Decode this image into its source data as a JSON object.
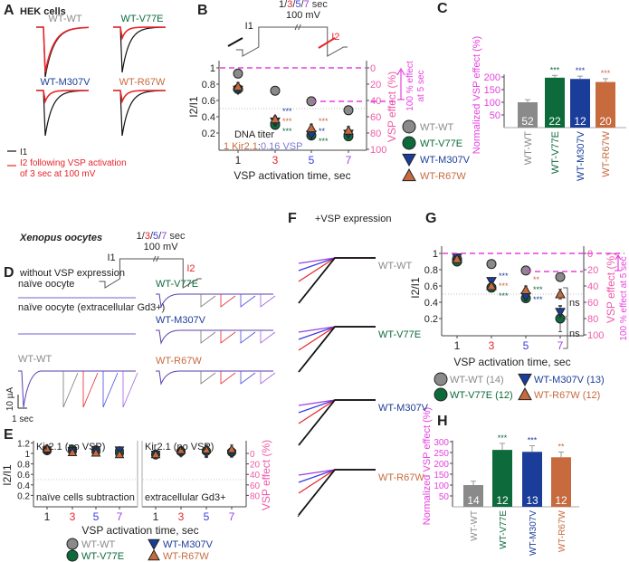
{
  "colors": {
    "WT-WT": "#8a8a8a",
    "WT-V77E": "#0d6b3b",
    "WT-M307V": "#1b3d9a",
    "WT-R67W": "#c76a3e",
    "vsp_axis": "#e83fe0",
    "vsp_ticks": "#ef5aa8",
    "t1": "#222222",
    "t3": "#e8242a",
    "t5": "#3a3ae0",
    "t7": "#9b3fe0"
  },
  "markers": {
    "WT-WT": "circle",
    "WT-V77E": "circle",
    "WT-M307V": "triangle-down",
    "WT-R67W": "triangle-up"
  },
  "panelA": {
    "label": "A",
    "title": "HEK cells",
    "traces": [
      "WT-WT",
      "WT-V77E",
      "WT-M307V",
      "WT-R67W"
    ],
    "legend_i1": "I1",
    "legend_i2_line1": "I2 following VSP activation",
    "legend_i2_line2": "of 3 sec at 100 mV"
  },
  "panelB": {
    "label": "B",
    "protocol_times": [
      "1",
      "/",
      "3",
      "/",
      "5",
      "/",
      "7",
      " sec"
    ],
    "protocol_voltage": "100 mV",
    "i1": "I1",
    "i2": "I2",
    "dna_titer": "DNA titer",
    "ratio_kir": "1 Kir2.1",
    "ratio_sep": ":",
    "ratio_vsp": "0.16 VSP",
    "arrow_note_line1": "100 % effect",
    "arrow_note_line2": "at 5 sec"
  },
  "panelD": {
    "section_title": "Xenopus oocytes",
    "label": "D",
    "subtitle": "without VSP expression",
    "protocol_times": [
      "1",
      "/",
      "3",
      "/",
      "5",
      "/",
      "7",
      " sec"
    ],
    "protocol_voltage": "100 mV",
    "i1": "I1",
    "i2": "I2",
    "rows": [
      "naïve oocyte",
      "naïve oocyte (extracellular Gd3+)",
      "WT-WT",
      "WT-V77E",
      "WT-M307V",
      "WT-R67W"
    ],
    "scale_y": "10 µA",
    "scale_x": "1 sec"
  },
  "panelF": {
    "label": "F",
    "subtitle": "+VSP expression",
    "traces": [
      "WT-WT",
      "WT-V77E",
      "WT-M307V",
      "WT-R67W"
    ]
  },
  "panelG": {
    "arrow_note": "100 % effect at 5 sec",
    "ns": "ns"
  },
  "chart_data": [
    {
      "id": "B",
      "type": "scatter",
      "xlabel": "VSP activation time, sec",
      "ylabel": "I2/I1",
      "y2label": "VSP effect (%)",
      "x": [
        1,
        3,
        5,
        7
      ],
      "xticks": [
        "1",
        "3",
        "5",
        "7"
      ],
      "yticks": [
        "0.2",
        "0.4",
        "0.6",
        "0.8",
        "1"
      ],
      "y2ticks": [
        "0",
        "20",
        "40",
        "60",
        "80",
        "100"
      ],
      "reference_line": 0.5,
      "grid": false,
      "series": [
        {
          "name": "WT-WT",
          "values": [
            0.93,
            0.72,
            0.59,
            0.48
          ],
          "errors": [
            0.02,
            0.02,
            0.03,
            0.03
          ],
          "stars": [
            "",
            "",
            "",
            ""
          ]
        },
        {
          "name": "WT-V77E",
          "values": [
            0.74,
            0.3,
            0.17,
            0.16
          ],
          "errors": [
            0.04,
            0.03,
            0.02,
            0.03
          ],
          "stars": [
            "",
            "***",
            "***",
            ""
          ]
        },
        {
          "name": "WT-M307V",
          "values": [
            0.73,
            0.34,
            0.18,
            0.19
          ],
          "errors": [
            0.04,
            0.04,
            0.02,
            0.03
          ],
          "stars": [
            "",
            "***",
            "**",
            ""
          ]
        },
        {
          "name": "WT-R67W",
          "values": [
            0.77,
            0.37,
            0.26,
            0.23
          ],
          "errors": [
            0.05,
            0.04,
            0.05,
            0.05
          ],
          "stars": [
            "",
            "***",
            "***",
            ""
          ]
        }
      ],
      "legend": [
        "WT-WT",
        "WT-V77E",
        "WT-M307V",
        "WT-R67W"
      ],
      "legend_placement": "right"
    },
    {
      "id": "C",
      "label": "C",
      "type": "bar",
      "ylabel": "Normalized VSP effect (%)",
      "categories": [
        "WT-WT",
        "WT-V77E",
        "WT-M307V",
        "WT-R67W"
      ],
      "values": [
        100,
        197,
        192,
        180
      ],
      "errors": [
        10,
        9,
        11,
        13
      ],
      "n": [
        "52",
        "22",
        "12",
        "20"
      ],
      "stars": [
        "",
        "***",
        "***",
        "***"
      ],
      "yticks": [
        "50",
        "100",
        "150",
        "200"
      ]
    },
    {
      "id": "E-left",
      "label": "E",
      "type": "scatter",
      "title": "Kir2.1 (no VSP)",
      "annotation": "naïve cells subtraction",
      "ylabel": "I2/I1",
      "xlabel": "VSP activation time, sec",
      "x": [
        1,
        3,
        5,
        7
      ],
      "xticks": [
        "1",
        "3",
        "5",
        "7"
      ],
      "yticks": [
        "0.2",
        "0.4",
        "0.6",
        "0.8",
        "1",
        "1.2"
      ],
      "series": [
        {
          "name": "WT-WT",
          "values": [
            1.05,
            1.04,
            1.03,
            1.0
          ],
          "errors": [
            0.03,
            0.03,
            0.03,
            0.04
          ]
        },
        {
          "name": "WT-V77E",
          "values": [
            1.07,
            1.08,
            1.07,
            1.05
          ],
          "errors": [
            0.03,
            0.03,
            0.03,
            0.04
          ]
        },
        {
          "name": "WT-M307V",
          "values": [
            1.06,
            1.05,
            1.06,
            1.06
          ],
          "errors": [
            0.03,
            0.03,
            0.03,
            0.04
          ]
        },
        {
          "name": "WT-R67W",
          "values": [
            1.09,
            1.02,
            1.01,
            0.98
          ],
          "errors": [
            0.03,
            0.03,
            0.03,
            0.04
          ]
        }
      ]
    },
    {
      "id": "E-right",
      "type": "scatter",
      "title": "Kir2.1 (no VSP)",
      "annotation": "extracellular Gd3+",
      "y2label": "VSP effect (%)",
      "x": [
        1,
        3,
        5,
        7
      ],
      "xticks": [
        "1",
        "3",
        "5",
        "7"
      ],
      "y2ticks": [
        "0",
        "20",
        "40",
        "60",
        "80"
      ],
      "series": [
        {
          "name": "WT-WT",
          "values": [
            0.97,
            1.03,
            1.04,
            1.03
          ],
          "errors": [
            0.05,
            0.08,
            0.1,
            0.08
          ]
        },
        {
          "name": "WT-V77E",
          "values": [
            0.99,
            1.04,
            1.05,
            1.02
          ],
          "errors": [
            0.04,
            0.06,
            0.08,
            0.07
          ]
        },
        {
          "name": "WT-M307V",
          "values": [
            0.98,
            1.01,
            1.0,
            1.0
          ],
          "errors": [
            0.04,
            0.06,
            0.08,
            0.07
          ]
        },
        {
          "name": "WT-R67W",
          "values": [
            0.98,
            1.06,
            1.07,
            1.08
          ],
          "errors": [
            0.04,
            0.07,
            0.09,
            0.08
          ]
        }
      ],
      "legend": [
        "WT-WT",
        "WT-V77E",
        "WT-M307V",
        "WT-R67W"
      ],
      "legend_placement": "bottom"
    },
    {
      "id": "G",
      "label": "G",
      "type": "scatter",
      "xlabel": "VSP activation time, sec",
      "ylabel": "I2/I1",
      "y2label": "VSP effect (%)",
      "x": [
        1,
        3,
        5,
        7
      ],
      "xticks": [
        "1",
        "3",
        "5",
        "7"
      ],
      "yticks": [
        "0.2",
        "0.4",
        "0.6",
        "0.8",
        "1"
      ],
      "y2ticks": [
        "0",
        "20",
        "40",
        "60",
        "80",
        "100"
      ],
      "reference_line": 0.5,
      "series": [
        {
          "name": "WT-WT",
          "values": [
            0.93,
            0.87,
            0.79,
            0.71
          ],
          "errors": [
            0.02,
            0.02,
            0.03,
            0.03
          ],
          "stars": [
            "",
            "",
            "",
            ""
          ]
        },
        {
          "name": "WT-V77E",
          "values": [
            0.9,
            0.58,
            0.45,
            0.2
          ],
          "errors": [
            0.02,
            0.02,
            0.05,
            0.16
          ],
          "stars": [
            "",
            "***",
            "***",
            ""
          ]
        },
        {
          "name": "WT-M307V",
          "values": [
            0.95,
            0.66,
            0.47,
            0.28
          ],
          "errors": [
            0.02,
            0.03,
            0.04,
            0.07
          ],
          "stars": [
            "",
            "***",
            "***",
            ""
          ]
        },
        {
          "name": "WT-R67W",
          "values": [
            0.93,
            0.6,
            0.55,
            0.5
          ],
          "errors": [
            0.02,
            0.03,
            0.05,
            0.06
          ],
          "stars": [
            "",
            "***",
            "**",
            ""
          ]
        }
      ],
      "legend": [
        "WT-WT (14)",
        "WT-V77E (12)",
        "WT-M307V (13)",
        "WT-R67W (12)"
      ],
      "legend_placement": "bottom"
    },
    {
      "id": "H",
      "label": "H",
      "type": "bar",
      "ylabel": "Normalized VSP effect (%)",
      "categories": [
        "WT-WT",
        "WT-V77E",
        "WT-M307V",
        "WT-R67W"
      ],
      "values": [
        100,
        262,
        253,
        228
      ],
      "errors": [
        18,
        30,
        28,
        24
      ],
      "n": [
        "14",
        "12",
        "13",
        "12"
      ],
      "stars": [
        "",
        "***",
        "***",
        "**"
      ],
      "yticks": [
        "50",
        "100",
        "150",
        "200",
        "250",
        "300"
      ]
    }
  ]
}
